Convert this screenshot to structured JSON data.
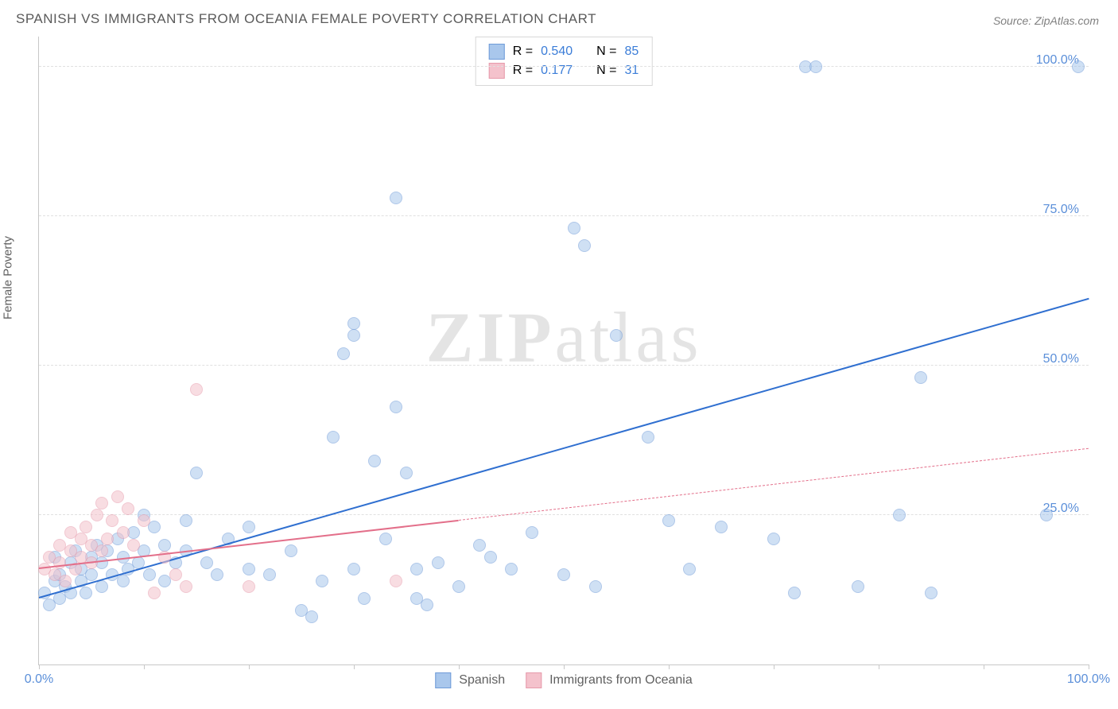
{
  "title": "SPANISH VS IMMIGRANTS FROM OCEANIA FEMALE POVERTY CORRELATION CHART",
  "source": "Source: ZipAtlas.com",
  "watermark_bold": "ZIP",
  "watermark_light": "atlas",
  "yaxis_label": "Female Poverty",
  "chart": {
    "type": "scatter",
    "xlim": [
      0,
      100
    ],
    "ylim": [
      0,
      105
    ],
    "x_ticks": [
      0,
      10,
      20,
      30,
      40,
      50,
      60,
      70,
      80,
      90,
      100
    ],
    "x_tick_labels": {
      "0": "0.0%",
      "100": "100.0%"
    },
    "y_gridlines": [
      25,
      50,
      75,
      100
    ],
    "y_tick_labels": {
      "25": "25.0%",
      "50": "50.0%",
      "75": "75.0%",
      "100": "100.0%"
    },
    "background_color": "#ffffff",
    "grid_color": "#e0e0e0",
    "axis_color": "#c8c8c8",
    "tick_label_color": "#5b8fd9",
    "marker_radius": 8,
    "marker_opacity": 0.55,
    "series": [
      {
        "name": "Spanish",
        "color_fill": "#a9c7ec",
        "color_stroke": "#6f9bd8",
        "trend_color": "#2f6fd0",
        "trend_width": 2.5,
        "trend_dash": "solid",
        "trend": {
          "x1": 0,
          "y1": 11,
          "x2": 100,
          "y2": 61
        },
        "R_label": "R =",
        "R": "0.540",
        "N_label": "N =",
        "N": "85",
        "points": [
          [
            0.5,
            12
          ],
          [
            1,
            10
          ],
          [
            1.5,
            14
          ],
          [
            1.5,
            18
          ],
          [
            2,
            11
          ],
          [
            2,
            15
          ],
          [
            2.5,
            13
          ],
          [
            3,
            17
          ],
          [
            3,
            12
          ],
          [
            3.5,
            19
          ],
          [
            4,
            14
          ],
          [
            4,
            16
          ],
          [
            4.5,
            12
          ],
          [
            5,
            18
          ],
          [
            5,
            15
          ],
          [
            5.5,
            20
          ],
          [
            6,
            13
          ],
          [
            6,
            17
          ],
          [
            6.5,
            19
          ],
          [
            7,
            15
          ],
          [
            7.5,
            21
          ],
          [
            8,
            14
          ],
          [
            8,
            18
          ],
          [
            8.5,
            16
          ],
          [
            9,
            22
          ],
          [
            9.5,
            17
          ],
          [
            10,
            19
          ],
          [
            10,
            25
          ],
          [
            10.5,
            15
          ],
          [
            11,
            23
          ],
          [
            12,
            14
          ],
          [
            12,
            20
          ],
          [
            13,
            17
          ],
          [
            14,
            19
          ],
          [
            14,
            24
          ],
          [
            15,
            32
          ],
          [
            16,
            17
          ],
          [
            17,
            15
          ],
          [
            18,
            21
          ],
          [
            20,
            16
          ],
          [
            20,
            23
          ],
          [
            22,
            15
          ],
          [
            24,
            19
          ],
          [
            25,
            9
          ],
          [
            26,
            8
          ],
          [
            27,
            14
          ],
          [
            28,
            38
          ],
          [
            29,
            52
          ],
          [
            30,
            16
          ],
          [
            30,
            57
          ],
          [
            30,
            55
          ],
          [
            31,
            11
          ],
          [
            32,
            34
          ],
          [
            33,
            21
          ],
          [
            34,
            43
          ],
          [
            34,
            78
          ],
          [
            35,
            32
          ],
          [
            36,
            16
          ],
          [
            36,
            11
          ],
          [
            37,
            10
          ],
          [
            38,
            17
          ],
          [
            40,
            13
          ],
          [
            42,
            20
          ],
          [
            43,
            18
          ],
          [
            45,
            16
          ],
          [
            47,
            22
          ],
          [
            50,
            15
          ],
          [
            51,
            73
          ],
          [
            52,
            70
          ],
          [
            53,
            13
          ],
          [
            55,
            55
          ],
          [
            58,
            38
          ],
          [
            60,
            24
          ],
          [
            62,
            16
          ],
          [
            65,
            23
          ],
          [
            70,
            21
          ],
          [
            72,
            12
          ],
          [
            73,
            100
          ],
          [
            74,
            100
          ],
          [
            78,
            13
          ],
          [
            82,
            25
          ],
          [
            84,
            48
          ],
          [
            85,
            12
          ],
          [
            99,
            100
          ],
          [
            96,
            25
          ]
        ]
      },
      {
        "name": "Immigrants from Oceania",
        "color_fill": "#f4c2cc",
        "color_stroke": "#e69aab",
        "trend_color": "#e36f8a",
        "trend_width": 2,
        "trend_dash": "solid",
        "trend": {
          "x1": 0,
          "y1": 16,
          "x2": 40,
          "y2": 24
        },
        "trend_ext_dash": "4,4",
        "trend_ext": {
          "x1": 40,
          "y1": 24,
          "x2": 100,
          "y2": 36
        },
        "R_label": "R =",
        "R": "0.177",
        "N_label": "N =",
        "N": "31",
        "points": [
          [
            0.5,
            16
          ],
          [
            1,
            18
          ],
          [
            1.5,
            15
          ],
          [
            2,
            17
          ],
          [
            2,
            20
          ],
          [
            2.5,
            14
          ],
          [
            3,
            19
          ],
          [
            3,
            22
          ],
          [
            3.5,
            16
          ],
          [
            4,
            21
          ],
          [
            4,
            18
          ],
          [
            4.5,
            23
          ],
          [
            5,
            17
          ],
          [
            5,
            20
          ],
          [
            5.5,
            25
          ],
          [
            6,
            19
          ],
          [
            6,
            27
          ],
          [
            6.5,
            21
          ],
          [
            7,
            24
          ],
          [
            7.5,
            28
          ],
          [
            8,
            22
          ],
          [
            8.5,
            26
          ],
          [
            9,
            20
          ],
          [
            10,
            24
          ],
          [
            11,
            12
          ],
          [
            12,
            18
          ],
          [
            13,
            15
          ],
          [
            14,
            13
          ],
          [
            15,
            46
          ],
          [
            20,
            13
          ],
          [
            34,
            14
          ]
        ]
      }
    ],
    "legend_bottom": [
      {
        "label": "Spanish",
        "fill": "#a9c7ec",
        "stroke": "#6f9bd8"
      },
      {
        "label": "Immigrants from Oceania",
        "fill": "#f4c2cc",
        "stroke": "#e69aab"
      }
    ]
  }
}
